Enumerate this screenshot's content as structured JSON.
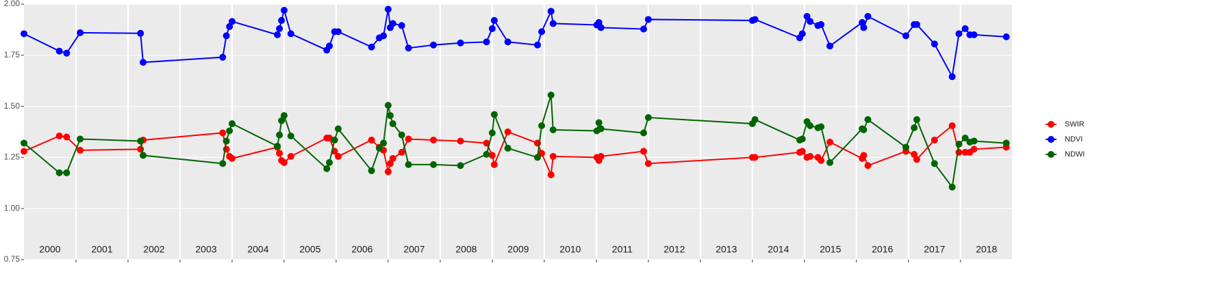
{
  "chart_data": {
    "type": "line",
    "x": [
      2000.0,
      2000.68,
      2000.82,
      2001.08,
      2002.24,
      2002.29,
      2003.82,
      2003.89,
      2003.95,
      2004.0,
      2004.87,
      2004.91,
      2004.95,
      2005.0,
      2005.13,
      2005.82,
      2005.87,
      2005.97,
      2006.04,
      2006.68,
      2006.83,
      2006.91,
      2007.0,
      2007.04,
      2007.09,
      2007.26,
      2007.39,
      2007.87,
      2008.39,
      2008.89,
      2009.0,
      2009.04,
      2009.3,
      2009.87,
      2009.95,
      2010.13,
      2010.17,
      2011.01,
      2011.05,
      2011.09,
      2011.91,
      2012.0,
      2014.0,
      2014.05,
      2014.91,
      2014.96,
      2015.05,
      2015.11,
      2015.26,
      2015.32,
      2015.49,
      2016.11,
      2016.14,
      2016.22,
      2016.95,
      2017.11,
      2017.16,
      2017.5,
      2017.84,
      2017.97,
      2018.09,
      2018.18,
      2018.26,
      2018.88
    ],
    "series": [
      {
        "name": "SWIR",
        "color": "#ff0000",
        "values": [
          1.28,
          1.355,
          1.35,
          1.285,
          1.29,
          1.335,
          1.37,
          1.29,
          1.255,
          1.245,
          1.3,
          1.27,
          1.235,
          1.225,
          1.255,
          1.345,
          1.345,
          1.28,
          1.255,
          1.335,
          1.3,
          1.285,
          1.18,
          1.22,
          1.245,
          1.275,
          1.34,
          1.335,
          1.33,
          1.32,
          1.26,
          1.215,
          1.375,
          1.32,
          1.27,
          1.165,
          1.255,
          1.25,
          1.235,
          1.255,
          1.28,
          1.22,
          1.25,
          1.25,
          1.275,
          1.28,
          1.25,
          1.255,
          1.25,
          1.235,
          1.325,
          1.245,
          1.26,
          1.21,
          1.28,
          1.265,
          1.24,
          1.335,
          1.405,
          1.275,
          1.275,
          1.275,
          1.29,
          1.3
        ]
      },
      {
        "name": "NDVI",
        "color": "#0000ff",
        "values": [
          1.855,
          1.77,
          1.76,
          1.86,
          1.857,
          1.715,
          1.74,
          1.845,
          1.89,
          1.915,
          1.85,
          1.88,
          1.92,
          1.97,
          1.855,
          1.775,
          1.795,
          1.865,
          1.865,
          1.79,
          1.835,
          1.845,
          1.975,
          1.885,
          1.905,
          1.895,
          1.785,
          1.8,
          1.81,
          1.815,
          1.88,
          1.92,
          1.815,
          1.8,
          1.865,
          1.965,
          1.905,
          1.898,
          1.91,
          1.885,
          1.878,
          1.925,
          1.92,
          1.925,
          1.835,
          1.855,
          1.94,
          1.915,
          1.895,
          1.9,
          1.795,
          1.91,
          1.885,
          1.94,
          1.845,
          1.9,
          1.9,
          1.805,
          1.645,
          1.855,
          1.88,
          1.85,
          1.85,
          1.84
        ]
      },
      {
        "name": "NDWI",
        "color": "#006400",
        "values": [
          1.32,
          1.175,
          1.175,
          1.34,
          1.33,
          1.26,
          1.22,
          1.33,
          1.38,
          1.415,
          1.305,
          1.36,
          1.43,
          1.455,
          1.355,
          1.195,
          1.225,
          1.335,
          1.39,
          1.185,
          1.295,
          1.32,
          1.505,
          1.455,
          1.415,
          1.36,
          1.215,
          1.215,
          1.21,
          1.265,
          1.37,
          1.46,
          1.295,
          1.25,
          1.405,
          1.555,
          1.385,
          1.38,
          1.42,
          1.39,
          1.37,
          1.445,
          1.415,
          1.435,
          1.335,
          1.34,
          1.425,
          1.405,
          1.395,
          1.4,
          1.225,
          1.39,
          1.385,
          1.435,
          1.3,
          1.395,
          1.435,
          1.22,
          1.105,
          1.315,
          1.345,
          1.325,
          1.33,
          1.32
        ]
      }
    ],
    "xlim": [
      2000,
      2018.99
    ],
    "xticks": [
      {
        "value": 2000.5,
        "label": "2000"
      },
      {
        "value": 2001.5,
        "label": "2001"
      },
      {
        "value": 2002.5,
        "label": "2002"
      },
      {
        "value": 2003.5,
        "label": "2003"
      },
      {
        "value": 2004.5,
        "label": "2004"
      },
      {
        "value": 2005.5,
        "label": "2005"
      },
      {
        "value": 2006.5,
        "label": "2006"
      },
      {
        "value": 2007.5,
        "label": "2007"
      },
      {
        "value": 2008.5,
        "label": "2008"
      },
      {
        "value": 2009.5,
        "label": "2009"
      },
      {
        "value": 2010.5,
        "label": "2010"
      },
      {
        "value": 2011.5,
        "label": "2011"
      },
      {
        "value": 2012.5,
        "label": "2012"
      },
      {
        "value": 2013.5,
        "label": "2013"
      },
      {
        "value": 2014.5,
        "label": "2014"
      },
      {
        "value": 2015.5,
        "label": "2015"
      },
      {
        "value": 2016.5,
        "label": "2016"
      },
      {
        "value": 2017.5,
        "label": "2017"
      },
      {
        "value": 2018.5,
        "label": "2018"
      }
    ],
    "xgrid": [
      2001,
      2002,
      2003,
      2004,
      2005,
      2006,
      2007,
      2008,
      2009,
      2010,
      2011,
      2012,
      2013,
      2014,
      2015,
      2016,
      2017,
      2018
    ],
    "ylim": [
      0.75,
      2.0
    ],
    "yticks": [
      0.75,
      {
        "value": 1,
        "label": "1.00"
      },
      1.25,
      {
        "value": 1.5,
        "label": "1.50"
      },
      1.75,
      {
        "value": 2,
        "label": "2.00"
      }
    ],
    "grid": true
  }
}
